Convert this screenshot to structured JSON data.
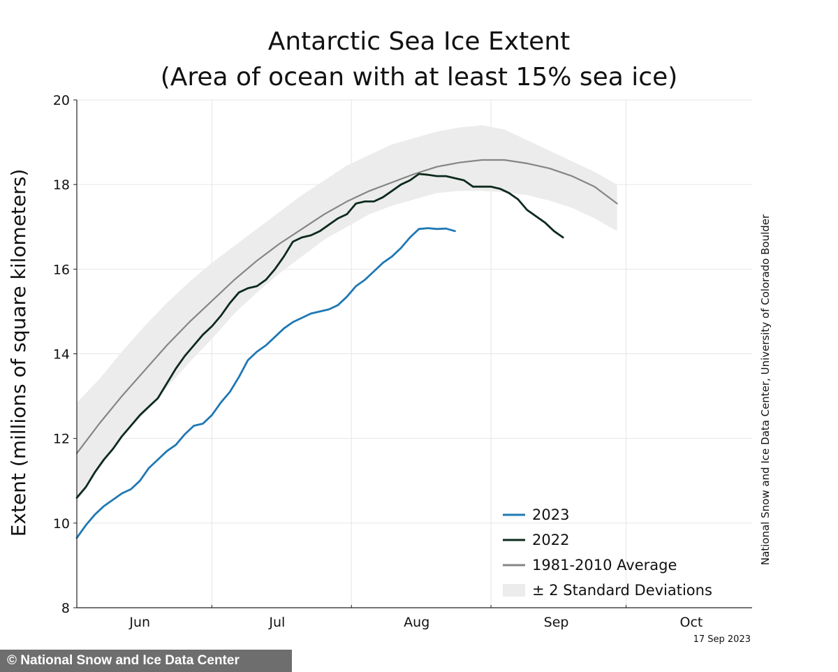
{
  "chart_data": {
    "type": "line",
    "title": "Antarctic Sea Ice Extent",
    "subtitle": "(Area of ocean with at least 15% sea ice)",
    "ylabel": "Extent (millions of square kilometers)",
    "xlabel": "",
    "ylim": [
      8,
      20
    ],
    "yticks": [
      8,
      10,
      12,
      14,
      16,
      18,
      20
    ],
    "xlim": [
      0,
      150
    ],
    "month_ticks": [
      0,
      30,
      61,
      92,
      122,
      153
    ],
    "month_labels": [
      {
        "label": "Jun",
        "pos": 14
      },
      {
        "label": "Jul",
        "pos": 44.5
      },
      {
        "label": "Aug",
        "pos": 75.5
      },
      {
        "label": "Sep",
        "pos": 106.5
      },
      {
        "label": "Oct",
        "pos": 136.5
      }
    ],
    "series": [
      {
        "name": "2023",
        "color": "#1f78b4",
        "points": [
          [
            0,
            9.65
          ],
          [
            2,
            9.95
          ],
          [
            4,
            10.2
          ],
          [
            6,
            10.4
          ],
          [
            8,
            10.55
          ],
          [
            10,
            10.7
          ],
          [
            12,
            10.8
          ],
          [
            14,
            11.0
          ],
          [
            16,
            11.3
          ],
          [
            18,
            11.5
          ],
          [
            20,
            11.7
          ],
          [
            22,
            11.85
          ],
          [
            24,
            12.1
          ],
          [
            26,
            12.3
          ],
          [
            28,
            12.35
          ],
          [
            30,
            12.55
          ],
          [
            32,
            12.85
          ],
          [
            34,
            13.1
          ],
          [
            36,
            13.45
          ],
          [
            38,
            13.85
          ],
          [
            40,
            14.05
          ],
          [
            42,
            14.2
          ],
          [
            44,
            14.4
          ],
          [
            46,
            14.6
          ],
          [
            48,
            14.75
          ],
          [
            50,
            14.85
          ],
          [
            52,
            14.95
          ],
          [
            54,
            15.0
          ],
          [
            56,
            15.05
          ],
          [
            58,
            15.15
          ],
          [
            60,
            15.35
          ],
          [
            62,
            15.6
          ],
          [
            64,
            15.75
          ],
          [
            66,
            15.95
          ],
          [
            68,
            16.15
          ],
          [
            70,
            16.3
          ],
          [
            72,
            16.5
          ],
          [
            74,
            16.75
          ],
          [
            76,
            16.95
          ],
          [
            78,
            16.97
          ],
          [
            80,
            16.95
          ],
          [
            82,
            16.96
          ],
          [
            84,
            16.9
          ]
        ]
      },
      {
        "name": "2022",
        "color": "#0d2a1c",
        "points": [
          [
            0,
            10.6
          ],
          [
            2,
            10.85
          ],
          [
            4,
            11.2
          ],
          [
            6,
            11.5
          ],
          [
            8,
            11.75
          ],
          [
            10,
            12.05
          ],
          [
            12,
            12.3
          ],
          [
            14,
            12.55
          ],
          [
            16,
            12.75
          ],
          [
            18,
            12.95
          ],
          [
            20,
            13.3
          ],
          [
            22,
            13.65
          ],
          [
            24,
            13.95
          ],
          [
            26,
            14.2
          ],
          [
            28,
            14.45
          ],
          [
            30,
            14.65
          ],
          [
            32,
            14.9
          ],
          [
            34,
            15.2
          ],
          [
            36,
            15.45
          ],
          [
            38,
            15.55
          ],
          [
            40,
            15.6
          ],
          [
            42,
            15.75
          ],
          [
            44,
            16.0
          ],
          [
            46,
            16.3
          ],
          [
            48,
            16.65
          ],
          [
            50,
            16.75
          ],
          [
            52,
            16.8
          ],
          [
            54,
            16.9
          ],
          [
            56,
            17.05
          ],
          [
            58,
            17.2
          ],
          [
            60,
            17.3
          ],
          [
            62,
            17.55
          ],
          [
            64,
            17.6
          ],
          [
            66,
            17.6
          ],
          [
            68,
            17.7
          ],
          [
            70,
            17.85
          ],
          [
            72,
            18.0
          ],
          [
            74,
            18.1
          ],
          [
            76,
            18.25
          ],
          [
            78,
            18.23
          ],
          [
            80,
            18.2
          ],
          [
            82,
            18.2
          ],
          [
            84,
            18.15
          ],
          [
            86,
            18.1
          ],
          [
            88,
            17.95
          ],
          [
            90,
            17.95
          ],
          [
            92,
            17.95
          ],
          [
            94,
            17.9
          ],
          [
            96,
            17.8
          ],
          [
            98,
            17.65
          ],
          [
            100,
            17.4
          ],
          [
            102,
            17.25
          ],
          [
            104,
            17.1
          ],
          [
            106,
            16.9
          ],
          [
            108,
            16.75
          ]
        ]
      },
      {
        "name": "1981-2010 Average",
        "color": "#858585",
        "points": [
          [
            0,
            11.65
          ],
          [
            5,
            12.35
          ],
          [
            10,
            13.0
          ],
          [
            15,
            13.6
          ],
          [
            20,
            14.2
          ],
          [
            25,
            14.75
          ],
          [
            30,
            15.25
          ],
          [
            35,
            15.75
          ],
          [
            40,
            16.2
          ],
          [
            45,
            16.6
          ],
          [
            50,
            16.95
          ],
          [
            55,
            17.3
          ],
          [
            60,
            17.6
          ],
          [
            65,
            17.85
          ],
          [
            70,
            18.05
          ],
          [
            75,
            18.25
          ],
          [
            80,
            18.42
          ],
          [
            85,
            18.52
          ],
          [
            90,
            18.58
          ],
          [
            95,
            18.58
          ],
          [
            100,
            18.5
          ],
          [
            105,
            18.38
          ],
          [
            110,
            18.2
          ],
          [
            115,
            17.95
          ],
          [
            120,
            17.55
          ]
        ]
      }
    ],
    "band": {
      "name": "± 2 Standard Deviations",
      "color": "#ececec",
      "upper": [
        [
          0,
          12.85
        ],
        [
          5,
          13.4
        ],
        [
          10,
          14.05
        ],
        [
          15,
          14.65
        ],
        [
          20,
          15.2
        ],
        [
          25,
          15.7
        ],
        [
          30,
          16.15
        ],
        [
          35,
          16.55
        ],
        [
          40,
          16.95
        ],
        [
          45,
          17.35
        ],
        [
          50,
          17.75
        ],
        [
          55,
          18.1
        ],
        [
          60,
          18.45
        ],
        [
          65,
          18.7
        ],
        [
          70,
          18.95
        ],
        [
          75,
          19.1
        ],
        [
          80,
          19.25
        ],
        [
          85,
          19.35
        ],
        [
          90,
          19.4
        ],
        [
          95,
          19.3
        ],
        [
          100,
          19.05
        ],
        [
          105,
          18.8
        ],
        [
          110,
          18.55
        ],
        [
          115,
          18.3
        ],
        [
          120,
          18.0
        ]
      ],
      "lower": [
        [
          0,
          10.5
        ],
        [
          5,
          11.3
        ],
        [
          10,
          12.0
        ],
        [
          15,
          12.6
        ],
        [
          20,
          13.2
        ],
        [
          25,
          13.8
        ],
        [
          30,
          14.35
        ],
        [
          35,
          14.95
        ],
        [
          40,
          15.45
        ],
        [
          45,
          15.9
        ],
        [
          50,
          16.3
        ],
        [
          55,
          16.7
        ],
        [
          60,
          17.0
        ],
        [
          65,
          17.3
        ],
        [
          70,
          17.5
        ],
        [
          75,
          17.65
        ],
        [
          80,
          17.8
        ],
        [
          85,
          17.85
        ],
        [
          90,
          17.85
        ],
        [
          95,
          17.82
        ],
        [
          100,
          17.75
        ],
        [
          105,
          17.62
        ],
        [
          110,
          17.45
        ],
        [
          115,
          17.2
        ],
        [
          120,
          16.9
        ]
      ]
    },
    "legend": {
      "position": "bottom-right",
      "entries": [
        "2023",
        "2022",
        "1981-2010 Average",
        "± 2 Standard Deviations"
      ]
    },
    "annotations": {
      "credit": "National Snow and Ice Data Center, University of Colorado Boulder",
      "date": "17 Sep 2023"
    }
  },
  "watermark": "© National Snow and Ice Data Center"
}
